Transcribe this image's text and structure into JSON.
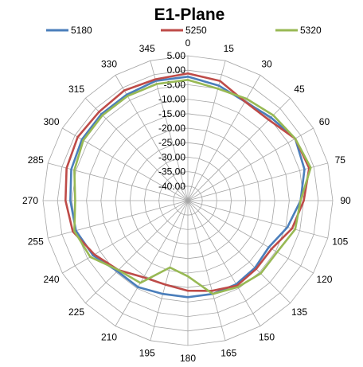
{
  "chart_data": {
    "type": "radar",
    "title": "E1-Plane",
    "angle_labels": [
      "0",
      "15",
      "30",
      "45",
      "60",
      "75",
      "90",
      "105",
      "120",
      "135",
      "150",
      "165",
      "180",
      "195",
      "210",
      "225",
      "240",
      "255",
      "270",
      "285",
      "300",
      "315",
      "330",
      "345"
    ],
    "r_tick_labels": [
      "5.00",
      "0.00",
      "-5.00",
      "-10.00",
      "-15.00",
      "-20.00",
      "-25.00",
      "-30.00",
      "-35.00",
      "-40.00"
    ],
    "rlim": [
      -40,
      5
    ],
    "grid": true,
    "legend_position": "top",
    "series": [
      {
        "name": "5180",
        "color": "#4a7ebb",
        "values": [
          -1.5,
          -3.0,
          -4.5,
          -3.5,
          -1.5,
          -2.5,
          -5.0,
          -8.0,
          -11.0,
          -10.5,
          -10.0,
          -10.0,
          -10.0,
          -10.0,
          -9.0,
          -9.0,
          -6.0,
          -4.0,
          -3.5,
          -2.5,
          -2.0,
          -2.0,
          -2.0,
          -1.5
        ]
      },
      {
        "name": "5250",
        "color": "#be4b48",
        "values": [
          -0.5,
          -1.5,
          -4.5,
          -4.5,
          -1.5,
          -1.0,
          -4.0,
          -6.5,
          -10.0,
          -10.0,
          -9.5,
          -11.0,
          -12.0,
          -13.0,
          -12.5,
          -9.5,
          -6.5,
          -3.0,
          -2.0,
          -1.0,
          -0.5,
          -1.0,
          -0.5,
          -1.0
        ]
      },
      {
        "name": "5320",
        "color": "#98b954",
        "values": [
          -2.5,
          -4.0,
          -3.5,
          -2.5,
          -1.5,
          -0.5,
          -5.0,
          -5.5,
          -8.0,
          -8.0,
          -9.0,
          -10.0,
          -16.5,
          -18.5,
          -10.5,
          -9.5,
          -5.0,
          -3.5,
          -5.0,
          -3.5,
          -2.5,
          -2.5,
          -2.5,
          -2.5
        ]
      }
    ]
  }
}
